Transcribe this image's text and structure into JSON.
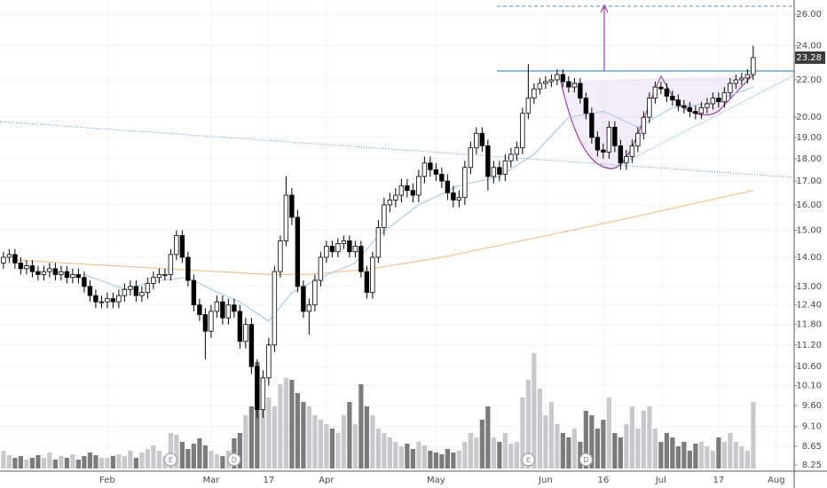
{
  "chart_data": {
    "type": "candlestick",
    "log_scale": true,
    "grid": true,
    "ylim": [
      8.14,
      26.96
    ],
    "yticks": [
      {
        "value": 8.25,
        "label": "8.25"
      },
      {
        "value": 8.65,
        "label": "8.65"
      },
      {
        "value": 9.1,
        "label": "9.10"
      },
      {
        "value": 9.6,
        "label": "9.60"
      },
      {
        "value": 10.1,
        "label": "10.10"
      },
      {
        "value": 10.6,
        "label": "10.60"
      },
      {
        "value": 11.2,
        "label": "11.20"
      },
      {
        "value": 11.8,
        "label": "11.80"
      },
      {
        "value": 12.4,
        "label": "12.40"
      },
      {
        "value": 13,
        "label": "13.00"
      },
      {
        "value": 14,
        "label": "14.00"
      },
      {
        "value": 15,
        "label": "15.00"
      },
      {
        "value": 16,
        "label": "16.00"
      },
      {
        "value": 17,
        "label": "17.00"
      },
      {
        "value": 18,
        "label": "18.00"
      },
      {
        "value": 19,
        "label": "19.00"
      },
      {
        "value": 20,
        "label": "20.00"
      },
      {
        "value": 22,
        "label": "22.00"
      },
      {
        "value": 24,
        "label": "24.00"
      },
      {
        "value": 26,
        "label": "26.00"
      }
    ],
    "xlim": [
      -0.6,
      137.1
    ],
    "xticks": [
      {
        "value": 18,
        "label": "Feb"
      },
      {
        "value": 36,
        "label": "Mar"
      },
      {
        "value": 46,
        "label": "17"
      },
      {
        "value": 56,
        "label": "Apr"
      },
      {
        "value": 75,
        "label": "May"
      },
      {
        "value": 94,
        "label": "Jun"
      },
      {
        "value": 104,
        "label": "16"
      },
      {
        "value": 114,
        "label": "Jul"
      },
      {
        "value": 124,
        "label": "17"
      },
      {
        "value": 134,
        "label": "Aug"
      }
    ],
    "last_price": 23.28,
    "up_color": "#ffffff",
    "down_color": "#000000",
    "volume_up_color": "#c8c9cc",
    "volume_down_color": "#7b7b7b",
    "open": [
      13.8,
      14.0,
      14.1,
      13.8,
      13.6,
      13.7,
      13.5,
      13.4,
      13.5,
      13.6,
      13.4,
      13.5,
      13.3,
      13.4,
      13.3,
      13.0,
      12.7,
      12.5,
      12.5,
      12.6,
      12.5,
      12.7,
      12.9,
      13.0,
      12.7,
      12.8,
      13.1,
      13.3,
      13.4,
      13.4,
      14.1,
      14.8,
      14.0,
      13.2,
      12.4,
      12.1,
      11.6,
      12.2,
      12.5,
      12.0,
      12.4,
      12.2,
      11.3,
      11.8,
      10.6,
      9.5,
      10.3,
      11.2,
      13.5,
      14.6,
      16.4,
      15.5,
      13.0,
      12.2,
      12.4,
      13.2,
      14.0,
      14.4,
      14.2,
      14.5,
      14.6,
      14.2,
      14.4,
      13.5,
      12.8,
      14.0,
      15.1,
      16.0,
      16.2,
      16.4,
      16.8,
      16.6,
      16.4,
      17.2,
      17.8,
      17.5,
      17.3,
      17.0,
      16.5,
      16.2,
      16.3,
      17.6,
      18.5,
      19.2,
      18.6,
      17.2,
      17.6,
      17.3,
      17.9,
      18.2,
      18.5,
      20.2,
      21.0,
      21.5,
      21.8,
      21.9,
      22.0,
      22.3,
      21.9,
      21.6,
      21.8,
      21.0,
      20.2,
      19.0,
      18.4,
      18.3,
      19.5,
      18.6,
      17.8,
      18.1,
      18.6,
      19.2,
      20.0,
      21.0,
      21.6,
      21.5,
      21.1,
      20.9,
      20.6,
      20.5,
      20.3,
      20.2,
      20.5,
      20.7,
      21.0,
      20.8,
      21.3,
      21.8,
      22.0,
      22.1,
      22.3
    ],
    "high": [
      14.2,
      14.3,
      14.3,
      14.0,
      13.9,
      13.9,
      13.7,
      13.7,
      13.8,
      13.8,
      13.7,
      13.7,
      13.6,
      13.6,
      13.5,
      13.2,
      12.9,
      12.7,
      12.8,
      12.8,
      12.9,
      13.1,
      13.2,
      13.2,
      13.0,
      13.3,
      13.5,
      13.6,
      13.6,
      14.3,
      15.0,
      15.0,
      14.2,
      13.4,
      12.6,
      12.3,
      12.4,
      12.7,
      12.7,
      12.6,
      12.6,
      12.4,
      12.0,
      12.0,
      10.8,
      10.5,
      11.4,
      13.7,
      14.8,
      17.2,
      16.7,
      15.8,
      13.2,
      12.6,
      13.4,
      14.2,
      14.6,
      14.6,
      14.7,
      14.8,
      14.8,
      14.6,
      14.6,
      13.7,
      14.2,
      15.4,
      16.3,
      16.5,
      16.7,
      17.1,
      17.1,
      16.9,
      17.5,
      18.1,
      18.1,
      17.8,
      17.6,
      17.3,
      16.8,
      16.6,
      17.9,
      18.8,
      19.5,
      19.5,
      18.9,
      17.9,
      17.9,
      18.2,
      18.5,
      18.8,
      20.5,
      22.9,
      21.8,
      22.1,
      22.2,
      22.3,
      22.6,
      22.6,
      22.2,
      22.1,
      22.1,
      21.3,
      20.5,
      19.3,
      18.7,
      19.8,
      19.8,
      18.9,
      18.4,
      18.9,
      19.5,
      20.3,
      21.3,
      21.9,
      21.9,
      21.8,
      21.4,
      21.2,
      20.9,
      20.8,
      20.6,
      20.8,
      21.0,
      21.3,
      21.3,
      21.6,
      22.1,
      22.3,
      22.4,
      22.6,
      24.0
    ],
    "low": [
      13.6,
      13.8,
      13.6,
      13.4,
      13.4,
      13.3,
      13.2,
      13.2,
      13.3,
      13.2,
      13.2,
      13.1,
      13.1,
      13.1,
      12.8,
      12.5,
      12.3,
      12.3,
      12.3,
      12.3,
      12.3,
      12.5,
      12.7,
      12.5,
      12.5,
      12.6,
      12.9,
      13.1,
      13.2,
      13.2,
      13.9,
      13.8,
      13.0,
      12.2,
      11.9,
      10.8,
      11.4,
      12.0,
      11.8,
      11.8,
      12.0,
      11.1,
      11.1,
      10.4,
      9.3,
      9.3,
      10.1,
      11.0,
      13.3,
      14.4,
      15.2,
      12.8,
      12.0,
      11.5,
      12.2,
      13.0,
      13.8,
      14.0,
      14.0,
      14.3,
      14.0,
      14.0,
      13.3,
      12.6,
      12.6,
      13.8,
      14.8,
      15.7,
      15.9,
      16.1,
      16.3,
      16.1,
      16.1,
      16.9,
      17.2,
      17.0,
      16.7,
      16.2,
      15.9,
      15.9,
      16.0,
      17.3,
      18.2,
      18.3,
      16.6,
      16.9,
      17.0,
      17.0,
      17.6,
      17.9,
      18.2,
      19.9,
      20.7,
      21.2,
      21.5,
      21.6,
      21.7,
      21.6,
      21.3,
      21.3,
      20.7,
      19.9,
      18.7,
      18.1,
      18.0,
      18.0,
      18.3,
      17.5,
      17.5,
      17.8,
      18.3,
      18.9,
      19.7,
      20.7,
      21.2,
      20.8,
      20.6,
      20.3,
      20.2,
      20.0,
      19.9,
      19.9,
      20.2,
      20.4,
      20.5,
      20.5,
      21.0,
      21.5,
      21.7,
      21.8,
      22.0
    ],
    "close": [
      14.0,
      14.1,
      13.8,
      13.6,
      13.7,
      13.5,
      13.4,
      13.5,
      13.6,
      13.4,
      13.5,
      13.3,
      13.4,
      13.3,
      13.0,
      12.7,
      12.5,
      12.5,
      12.6,
      12.5,
      12.7,
      12.9,
      13.0,
      12.7,
      12.8,
      13.1,
      13.3,
      13.4,
      13.4,
      14.1,
      14.8,
      14.0,
      13.2,
      12.4,
      12.1,
      11.6,
      12.2,
      12.5,
      12.0,
      12.4,
      12.2,
      11.3,
      11.8,
      10.6,
      9.5,
      10.3,
      11.2,
      13.5,
      14.6,
      16.4,
      15.5,
      13.0,
      12.2,
      12.4,
      13.2,
      14.0,
      14.4,
      14.2,
      14.5,
      14.6,
      14.2,
      14.4,
      13.5,
      12.8,
      14.0,
      15.1,
      16.0,
      16.2,
      16.4,
      16.8,
      16.6,
      16.4,
      17.2,
      17.8,
      17.5,
      17.3,
      17.0,
      16.5,
      16.2,
      16.3,
      17.6,
      18.5,
      19.2,
      18.6,
      17.2,
      17.6,
      17.3,
      17.9,
      18.2,
      18.5,
      20.2,
      21.0,
      21.5,
      21.8,
      21.9,
      22.0,
      22.3,
      21.9,
      21.6,
      21.8,
      21.0,
      20.2,
      19.0,
      18.4,
      18.3,
      19.5,
      18.6,
      17.8,
      18.1,
      18.6,
      19.2,
      20.0,
      21.0,
      21.6,
      21.5,
      21.1,
      20.9,
      20.6,
      20.5,
      20.3,
      20.2,
      20.5,
      20.7,
      21.0,
      20.8,
      21.3,
      21.8,
      22.0,
      22.1,
      22.3,
      23.28
    ],
    "volume": [
      20,
      15,
      12,
      14,
      10,
      12,
      15,
      12,
      18,
      10,
      14,
      12,
      16,
      10,
      14,
      18,
      15,
      12,
      12,
      14,
      16,
      14,
      20,
      12,
      18,
      22,
      26,
      20,
      14,
      40,
      38,
      30,
      22,
      28,
      34,
      26,
      20,
      16,
      14,
      20,
      34,
      40,
      60,
      70,
      120,
      100,
      80,
      70,
      95,
      102,
      100,
      85,
      75,
      70,
      60,
      55,
      50,
      45,
      40,
      60,
      75,
      50,
      95,
      70,
      60,
      45,
      40,
      35,
      30,
      25,
      28,
      22,
      30,
      26,
      20,
      18,
      16,
      22,
      18,
      20,
      30,
      40,
      35,
      55,
      70,
      35,
      30,
      40,
      28,
      30,
      80,
      100,
      130,
      90,
      60,
      75,
      50,
      40,
      35,
      45,
      30,
      65,
      60,
      45,
      55,
      80,
      40,
      35,
      50,
      70,
      45,
      65,
      70,
      45,
      30,
      40,
      35,
      25,
      30,
      20,
      28,
      30,
      25,
      20,
      35,
      30,
      40,
      30,
      25,
      20,
      75
    ],
    "overlays": [
      {
        "color": "#f7c08a",
        "x": [
          2,
          15,
          46,
          53,
          64,
          76,
          92,
          107,
          130
        ],
        "values": [
          13.9,
          13.75,
          13.4,
          13.4,
          13.6,
          14.0,
          14.7,
          15.4,
          16.6
        ]
      },
      {
        "color": "#a9cdea",
        "x": [
          14,
          21,
          27,
          32,
          36,
          41,
          46,
          50,
          55,
          61,
          65,
          72,
          79,
          86,
          92,
          98,
          104,
          110,
          116,
          122,
          130
        ],
        "values": [
          13.4,
          12.9,
          13.2,
          13.3,
          12.9,
          12.5,
          11.9,
          12.8,
          13.3,
          13.8,
          14.8,
          16.0,
          16.8,
          17.2,
          18.2,
          20.0,
          20.3,
          19.5,
          20.5,
          20.7,
          21.6
        ]
      }
    ],
    "events": [
      {
        "x": 29,
        "label": "E"
      },
      {
        "x": 40,
        "label": "D"
      },
      {
        "x": 91,
        "label": "E"
      },
      {
        "x": 101,
        "label": "D"
      }
    ]
  }
}
